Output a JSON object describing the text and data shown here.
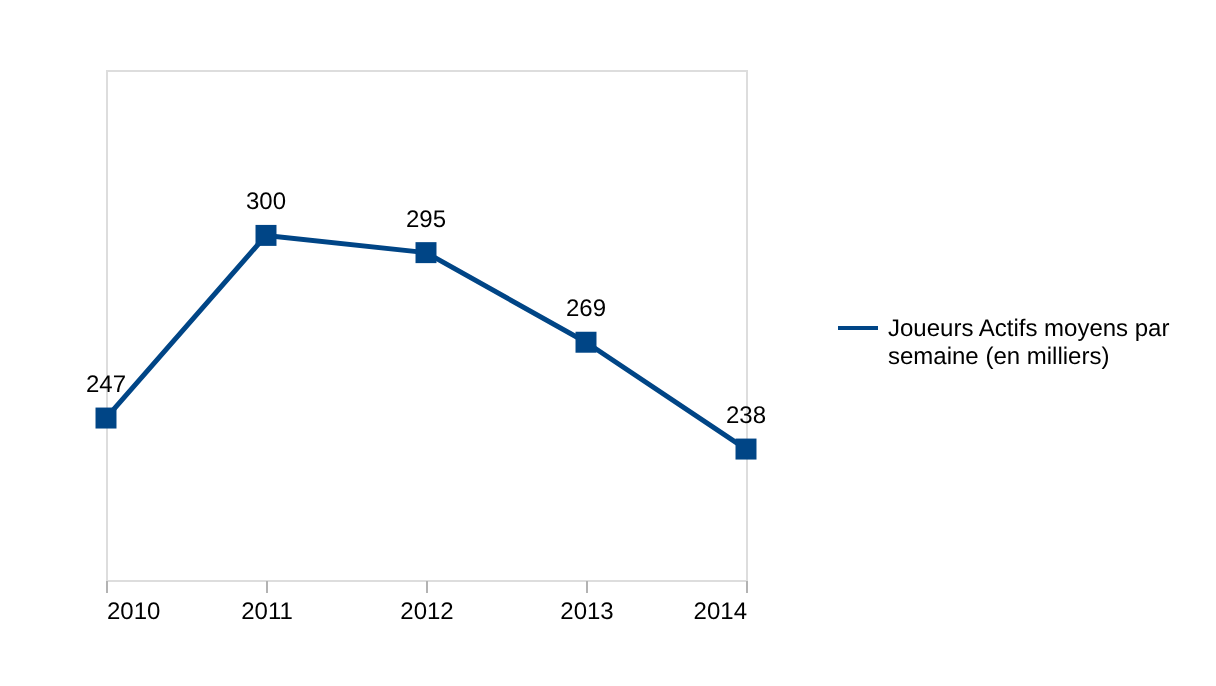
{
  "chart_data": {
    "type": "line",
    "categories": [
      "2010",
      "2011",
      "2012",
      "2013",
      "2014"
    ],
    "series": [
      {
        "name": "Joueurs Actifs moyens par semaine (en milliers)",
        "color": "#004586",
        "values": [
          247,
          300,
          295,
          269,
          238
        ]
      }
    ],
    "ylim": [
      200,
      348
    ],
    "tick_labels": "x",
    "data_labels": true,
    "marker": "square",
    "line_style": "solid",
    "legend": "right",
    "grid": false
  }
}
